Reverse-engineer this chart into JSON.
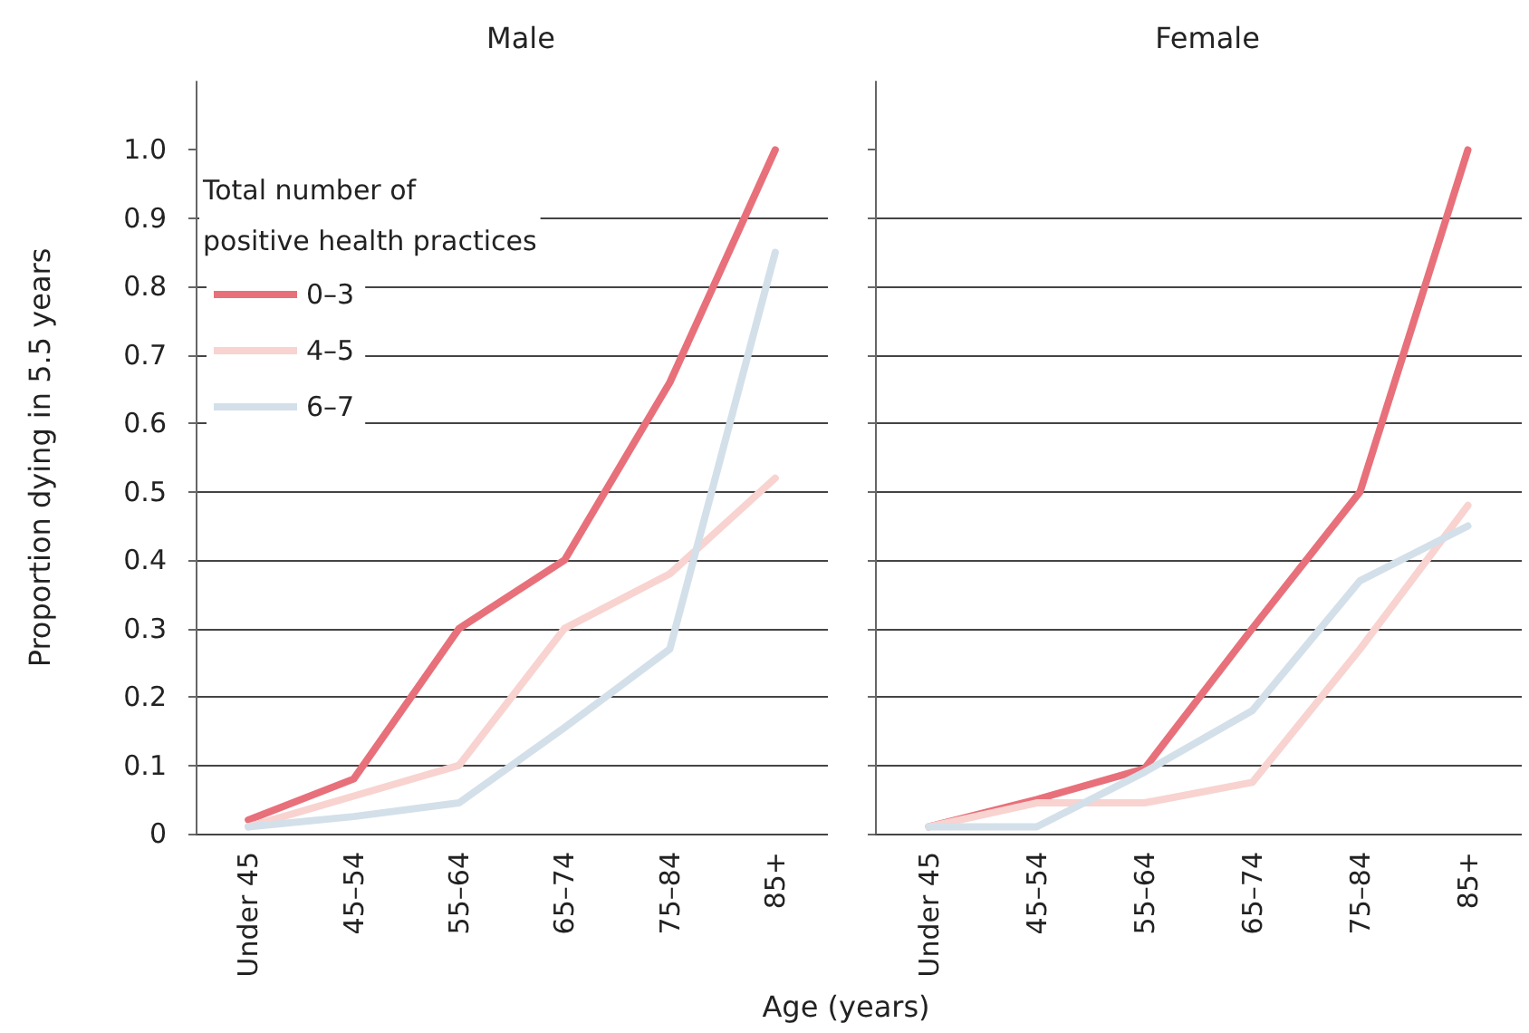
{
  "chart_data": [
    {
      "type": "line",
      "title": "Male",
      "ylabel": "Proportion dying in 5.5 years",
      "xlabel": "Age (years)",
      "legend_title": "Total number of\npositive health practices",
      "legend": "top left",
      "grid": "y",
      "marker": "none",
      "line_style": "solid",
      "categories": [
        "Under 45",
        "45–54",
        "55–64",
        "65–74",
        "75–84",
        "85+"
      ],
      "ylim": [
        0,
        1.1
      ],
      "yticks": [
        0,
        0.1,
        0.2,
        0.3,
        0.4,
        0.5,
        0.6,
        0.7,
        0.8,
        0.9,
        {
          "value": 1,
          "label": "1.0"
        }
      ],
      "series": [
        {
          "name": "0–3",
          "color": "#e8707a",
          "values": [
            0.02,
            0.08,
            0.3,
            0.4,
            0.66,
            1.0
          ]
        },
        {
          "name": "4–5",
          "color": "#f8d3d0",
          "values": [
            0.01,
            0.055,
            0.1,
            0.3,
            0.38,
            0.52
          ]
        },
        {
          "name": "6–7",
          "color": "#d3e0ea",
          "values": [
            0.01,
            0.025,
            0.045,
            0.155,
            0.27,
            0.85
          ]
        }
      ]
    },
    {
      "type": "line",
      "title": "Female",
      "grid": "y",
      "marker": "none",
      "line_style": "solid",
      "tick_labels": "x",
      "categories": [
        "Under 45",
        "45–54",
        "55–64",
        "65–74",
        "75–84",
        "85+"
      ],
      "ylim": [
        0,
        1.1
      ],
      "yticks": [
        0,
        0.1,
        0.2,
        0.3,
        0.4,
        0.5,
        0.6,
        0.7,
        0.8,
        0.9,
        1
      ],
      "series": [
        {
          "color": "#e8707a",
          "values": [
            0.01,
            0.05,
            0.095,
            0.3,
            0.5,
            1.0
          ]
        },
        {
          "color": "#f8d3d0",
          "values": [
            0.01,
            0.045,
            0.045,
            0.075,
            0.27,
            0.48
          ]
        },
        {
          "color": "#d3e0ea",
          "values": [
            0.01,
            0.01,
            0.09,
            0.18,
            0.37,
            0.45
          ]
        }
      ]
    }
  ]
}
